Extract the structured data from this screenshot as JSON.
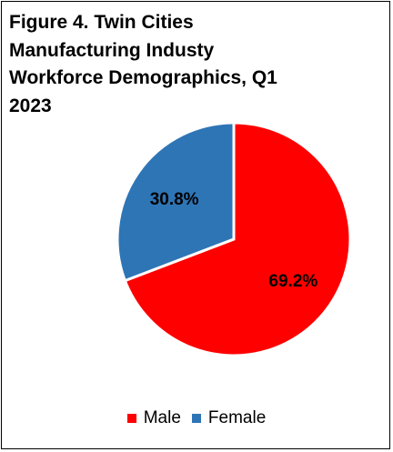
{
  "chart_data": {
    "type": "pie",
    "title": "Figure 4. Twin Cities Manufacturing Industy Workforce Demographics, Q1 2023",
    "categories": [
      "Male",
      "Female"
    ],
    "values": [
      69.2,
      30.8
    ],
    "value_labels": [
      "69.2%",
      "30.8%"
    ],
    "colors": [
      "#ff0000",
      "#2e75b6"
    ],
    "legend": {
      "placement": "bottom",
      "entries": [
        "Male",
        "Female"
      ]
    }
  }
}
